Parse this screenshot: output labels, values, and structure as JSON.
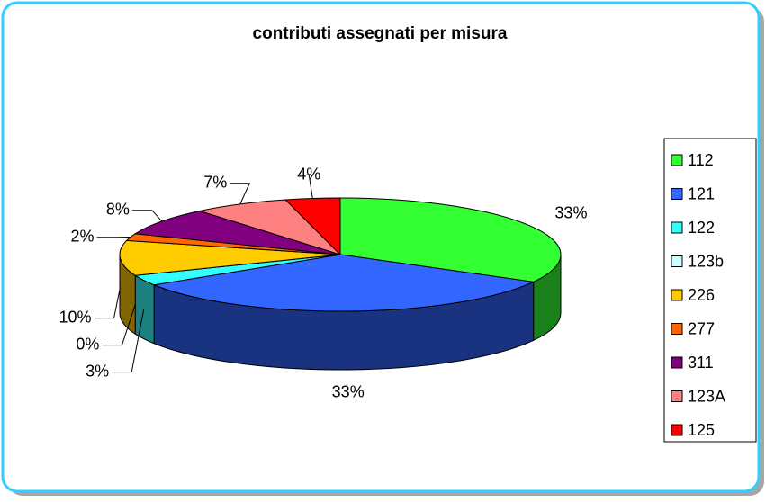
{
  "chart_data": {
    "type": "pie3d",
    "title": "contributi assegnati per misura",
    "categories": [
      "112",
      "121",
      "122",
      "123b",
      "226",
      "277",
      "311",
      "123A",
      "125"
    ],
    "values": [
      33,
      33,
      3,
      0,
      10,
      2,
      8,
      7,
      4
    ],
    "value_labels": [
      "33%",
      "33%",
      "3%",
      "0%",
      "10%",
      "2%",
      "8%",
      "7%",
      "4%"
    ],
    "colors": [
      "#33ff33",
      "#3366ff",
      "#33ffff",
      "#ccffff",
      "#ffcc00",
      "#ff6600",
      "#800080",
      "#ff8080",
      "#ff0000"
    ],
    "legend": "right"
  }
}
